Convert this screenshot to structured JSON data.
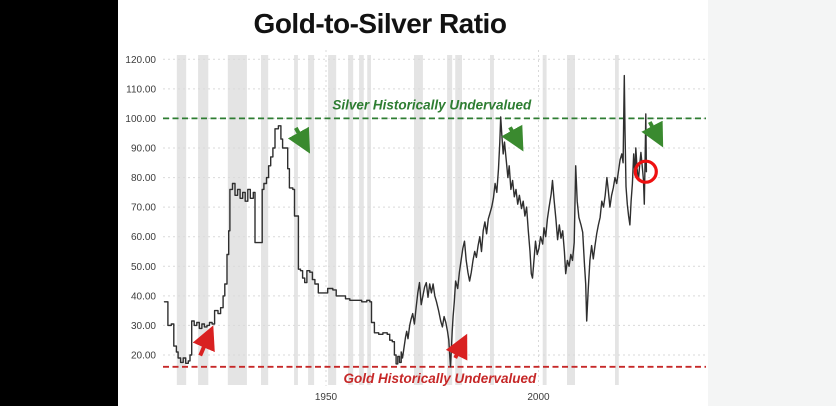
{
  "title": "Gold-to-Silver Ratio",
  "colors": {
    "background": "#ffffff",
    "letterbox": "#000000",
    "right_margin": "#f4f5f5",
    "series_line": "#2f2f2f",
    "recession_band": "#e4e4e4",
    "gridline": "#d9d9d9",
    "silver_green": "#2e7d32",
    "gold_red": "#c62828",
    "arrow_red": "#d92121",
    "arrow_green": "#3a8a2f",
    "circle_red": "#ee1111"
  },
  "chart_data": {
    "type": "line",
    "title": "Gold-to-Silver Ratio",
    "xlabel": "",
    "ylabel": "",
    "grid": true,
    "x_axis": {
      "ticks": [
        {
          "value": 1950,
          "label": "1950"
        },
        {
          "value": 2000,
          "label": "2000"
        }
      ],
      "data_range": [
        1912,
        2025.4
      ]
    },
    "y_axis": {
      "ticks": [
        {
          "value": 120,
          "label": "120.00"
        },
        {
          "value": 110,
          "label": "110.00"
        },
        {
          "value": 100,
          "label": "100.00"
        },
        {
          "value": 90,
          "label": "90.00"
        },
        {
          "value": 80,
          "label": "80.00"
        },
        {
          "value": 70,
          "label": "70.00"
        },
        {
          "value": 60,
          "label": "60.00"
        },
        {
          "value": 50,
          "label": "50.00"
        },
        {
          "value": 40,
          "label": "40.00"
        },
        {
          "value": 30,
          "label": "30.00"
        },
        {
          "value": 20,
          "label": "20.00"
        }
      ],
      "display_range": [
        20,
        120
      ]
    },
    "reference_lines": [
      {
        "name": "silver-historically-undervalued",
        "value": 100,
        "label": "Silver Historically Undervalued",
        "color": "#2e7d32",
        "label_center_year": 1974.9,
        "label_side": "above"
      },
      {
        "name": "gold-historically-undervalued",
        "value": 16,
        "label": "Gold Historically Undervalued",
        "color": "#c62828",
        "label_center_year": 1976.8,
        "label_side": "below"
      }
    ],
    "shaded_bands": [
      [
        1914.9,
        1917.1
      ],
      [
        1919.9,
        1922.3
      ],
      [
        1926.9,
        1931.4
      ],
      [
        1934.7,
        1936.4
      ],
      [
        1942.5,
        1943.4
      ],
      [
        1945.8,
        1947.2
      ],
      [
        1950.5,
        1952.4
      ],
      [
        1955.2,
        1956.4
      ],
      [
        1957.8,
        1958.9
      ],
      [
        1959.7,
        1960.6
      ],
      [
        1970.7,
        1972.8
      ],
      [
        1978.5,
        1979.7
      ],
      [
        1980.4,
        1982.0
      ],
      [
        1988.6,
        1989.5
      ],
      [
        2001.0,
        2001.9
      ],
      [
        2006.7,
        2008.6
      ],
      [
        2018.0,
        2018.9
      ]
    ],
    "step_rendering_before_year": 1968,
    "series": [
      {
        "name": "gold-to-silver-ratio",
        "color": "#2f2f2f",
        "points": [
          [
            1912,
            38
          ],
          [
            1912.8,
            30
          ],
          [
            1913.6,
            30.5
          ],
          [
            1914.2,
            23
          ],
          [
            1914.8,
            21
          ],
          [
            1915.2,
            19
          ],
          [
            1915.8,
            17.5
          ],
          [
            1916.4,
            19
          ],
          [
            1917,
            17.2
          ],
          [
            1917.6,
            18
          ],
          [
            1918,
            20
          ],
          [
            1918.4,
            31.5
          ],
          [
            1919,
            30
          ],
          [
            1919.6,
            31
          ],
          [
            1920.2,
            29
          ],
          [
            1920.8,
            30.5
          ],
          [
            1921.4,
            29.5
          ],
          [
            1922,
            30
          ],
          [
            1922.6,
            31
          ],
          [
            1923.2,
            30.5
          ],
          [
            1923.8,
            35
          ],
          [
            1924.6,
            34
          ],
          [
            1925.2,
            36
          ],
          [
            1925.8,
            40
          ],
          [
            1926.2,
            44
          ],
          [
            1926.7,
            54
          ],
          [
            1927.1,
            62
          ],
          [
            1927.4,
            76
          ],
          [
            1928,
            78
          ],
          [
            1928.6,
            74
          ],
          [
            1929.2,
            76
          ],
          [
            1929.8,
            73
          ],
          [
            1930.4,
            75
          ],
          [
            1931,
            72
          ],
          [
            1931.6,
            76
          ],
          [
            1932.2,
            73
          ],
          [
            1932.9,
            75
          ],
          [
            1933.3,
            58
          ],
          [
            1934.7,
            58
          ],
          [
            1935,
            76
          ],
          [
            1935.4,
            78
          ],
          [
            1936,
            80
          ],
          [
            1936.5,
            84
          ],
          [
            1937,
            87
          ],
          [
            1937.5,
            90
          ],
          [
            1938,
            96.5
          ],
          [
            1938.8,
            97.5
          ],
          [
            1939.4,
            93
          ],
          [
            1939.8,
            90
          ],
          [
            1940.6,
            90
          ],
          [
            1941,
            83
          ],
          [
            1941.4,
            76.5
          ],
          [
            1942.2,
            76
          ],
          [
            1942.6,
            67
          ],
          [
            1943.2,
            67
          ],
          [
            1943.5,
            49
          ],
          [
            1944,
            48.5
          ],
          [
            1944.5,
            46
          ],
          [
            1945,
            44.5
          ],
          [
            1945.5,
            48.5
          ],
          [
            1946.2,
            48
          ],
          [
            1946.8,
            45.5
          ],
          [
            1947.4,
            44
          ],
          [
            1948.2,
            41
          ],
          [
            1949.4,
            41
          ],
          [
            1950.4,
            42.5
          ],
          [
            1951.6,
            42
          ],
          [
            1952.4,
            40
          ],
          [
            1953.6,
            40
          ],
          [
            1954.6,
            39
          ],
          [
            1955.6,
            38.5
          ],
          [
            1957,
            38.5
          ],
          [
            1958.4,
            38
          ],
          [
            1959.6,
            38.5
          ],
          [
            1960.3,
            38
          ],
          [
            1960.7,
            31
          ],
          [
            1961.4,
            27.5
          ],
          [
            1962.4,
            27
          ],
          [
            1963.4,
            27.5
          ],
          [
            1964.4,
            27
          ],
          [
            1965,
            25
          ],
          [
            1965.6,
            24.5
          ],
          [
            1966.1,
            20
          ],
          [
            1966.5,
            17
          ],
          [
            1966.9,
            19.5
          ],
          [
            1967.3,
            17.5
          ],
          [
            1967.7,
            21
          ],
          [
            1968,
            19
          ],
          [
            1968.3,
            22
          ],
          [
            1968.7,
            26
          ],
          [
            1969,
            28
          ],
          [
            1969.3,
            25.5
          ],
          [
            1969.7,
            30
          ],
          [
            1970,
            32
          ],
          [
            1970.4,
            34
          ],
          [
            1970.8,
            30.5
          ],
          [
            1971.2,
            36
          ],
          [
            1971.6,
            41
          ],
          [
            1972,
            44.5
          ],
          [
            1972.4,
            37
          ],
          [
            1972.8,
            40
          ],
          [
            1973.2,
            43
          ],
          [
            1973.6,
            44.5
          ],
          [
            1974,
            39.5
          ],
          [
            1974.4,
            44
          ],
          [
            1974.8,
            41
          ],
          [
            1975.2,
            44
          ],
          [
            1975.6,
            40
          ],
          [
            1976,
            38
          ],
          [
            1976.5,
            35
          ],
          [
            1977,
            31.5
          ],
          [
            1977.4,
            29.5
          ],
          [
            1977.8,
            33
          ],
          [
            1978.2,
            31
          ],
          [
            1978.6,
            28
          ],
          [
            1978.9,
            25
          ],
          [
            1979.1,
            20
          ],
          [
            1979.3,
            16
          ],
          [
            1979.5,
            22
          ],
          [
            1979.7,
            28
          ],
          [
            1979.9,
            33
          ],
          [
            1980.2,
            38
          ],
          [
            1980.5,
            45
          ],
          [
            1981,
            42.5
          ],
          [
            1981.4,
            48
          ],
          [
            1981.8,
            52
          ],
          [
            1982.2,
            56
          ],
          [
            1982.6,
            58.5
          ],
          [
            1983,
            52
          ],
          [
            1983.4,
            48
          ],
          [
            1983.8,
            45
          ],
          [
            1984.2,
            48
          ],
          [
            1984.6,
            52
          ],
          [
            1985,
            55
          ],
          [
            1985.4,
            53
          ],
          [
            1985.8,
            57
          ],
          [
            1986.2,
            60
          ],
          [
            1986.6,
            55
          ],
          [
            1987,
            62
          ],
          [
            1987.4,
            65
          ],
          [
            1987.8,
            61
          ],
          [
            1988.2,
            66
          ],
          [
            1988.6,
            68
          ],
          [
            1989,
            70
          ],
          [
            1989.4,
            73
          ],
          [
            1989.8,
            78
          ],
          [
            1990.2,
            75
          ],
          [
            1990.6,
            83
          ],
          [
            1990.9,
            92
          ],
          [
            1991.1,
            100.5
          ],
          [
            1991.4,
            94
          ],
          [
            1991.7,
            88
          ],
          [
            1992,
            92
          ],
          [
            1992.4,
            86
          ],
          [
            1992.8,
            80
          ],
          [
            1993.1,
            84
          ],
          [
            1993.5,
            76
          ],
          [
            1993.9,
            79
          ],
          [
            1994.3,
            73.5
          ],
          [
            1994.7,
            76
          ],
          [
            1995.1,
            71
          ],
          [
            1995.5,
            74
          ],
          [
            1996,
            69.5
          ],
          [
            1996.4,
            72
          ],
          [
            1996.8,
            67
          ],
          [
            1997.2,
            70
          ],
          [
            1997.6,
            62
          ],
          [
            1998,
            55
          ],
          [
            1998.3,
            47.5
          ],
          [
            1998.6,
            46
          ],
          [
            1999,
            53
          ],
          [
            1999.3,
            58.5
          ],
          [
            1999.7,
            54
          ],
          [
            2000.1,
            56
          ],
          [
            2000.5,
            60
          ],
          [
            2001,
            57.5
          ],
          [
            2001.3,
            63
          ],
          [
            2001.7,
            60
          ],
          [
            2002.1,
            66
          ],
          [
            2002.5,
            70
          ],
          [
            2003,
            74.5
          ],
          [
            2003.3,
            79
          ],
          [
            2003.7,
            72
          ],
          [
            2004.1,
            66
          ],
          [
            2004.5,
            59
          ],
          [
            2004.9,
            64
          ],
          [
            2005.3,
            59.5
          ],
          [
            2005.7,
            62
          ],
          [
            2006.1,
            55
          ],
          [
            2006.4,
            47.5
          ],
          [
            2006.8,
            52
          ],
          [
            2007.2,
            50
          ],
          [
            2007.6,
            54
          ],
          [
            2008,
            52
          ],
          [
            2008.4,
            58
          ],
          [
            2008.75,
            84
          ],
          [
            2009.1,
            72
          ],
          [
            2009.5,
            66.5
          ],
          [
            2010,
            64
          ],
          [
            2010.4,
            61.5
          ],
          [
            2010.8,
            51
          ],
          [
            2011.1,
            44
          ],
          [
            2011.35,
            31.5
          ],
          [
            2011.7,
            42
          ],
          [
            2012.1,
            52
          ],
          [
            2012.5,
            57
          ],
          [
            2012.9,
            52.5
          ],
          [
            2013.3,
            57
          ],
          [
            2013.7,
            61
          ],
          [
            2014.1,
            64
          ],
          [
            2014.5,
            66.5
          ],
          [
            2014.9,
            72
          ],
          [
            2015.3,
            70
          ],
          [
            2015.7,
            74
          ],
          [
            2016.1,
            80
          ],
          [
            2016.4,
            76
          ],
          [
            2016.8,
            70
          ],
          [
            2017.2,
            74
          ],
          [
            2017.6,
            76.5
          ],
          [
            2018,
            80
          ],
          [
            2018.4,
            78
          ],
          [
            2018.8,
            82
          ],
          [
            2019.2,
            86
          ],
          [
            2019.6,
            88
          ],
          [
            2019.9,
            85
          ],
          [
            2020.2,
            114.5
          ],
          [
            2020.35,
            96
          ],
          [
            2020.6,
            77
          ],
          [
            2020.9,
            71
          ],
          [
            2021.2,
            67
          ],
          [
            2021.5,
            64
          ],
          [
            2021.8,
            72
          ],
          [
            2022.1,
            78
          ],
          [
            2022.4,
            88
          ],
          [
            2022.7,
            81
          ],
          [
            2022.9,
            90
          ],
          [
            2023.2,
            83
          ],
          [
            2023.5,
            79
          ],
          [
            2023.8,
            84
          ],
          [
            2024.1,
            88.5
          ],
          [
            2024.4,
            84
          ],
          [
            2024.7,
            79
          ],
          [
            2024.9,
            71
          ],
          [
            2025.1,
            88
          ],
          [
            2025.25,
            101.5
          ],
          [
            2025.4,
            82
          ]
        ]
      }
    ],
    "annotations": {
      "arrows": [
        {
          "name": "up-arrow-1920s-low",
          "direction": "up",
          "color": "#d92121",
          "from": [
            1920.4,
            19.8
          ],
          "to": [
            1923.1,
            28.8
          ]
        },
        {
          "name": "down-arrow-1940s-peak",
          "direction": "down",
          "color": "#3a8a2f",
          "from": [
            1942.9,
            96.8
          ],
          "to": [
            1945.8,
            89.3
          ]
        },
        {
          "name": "up-arrow-1980-low",
          "direction": "up",
          "color": "#d92121",
          "from": [
            1980.4,
            19.0
          ],
          "to": [
            1982.8,
            26.0
          ]
        },
        {
          "name": "down-arrow-1991-peak",
          "direction": "down",
          "color": "#3a8a2f",
          "from": [
            1993.3,
            97.0
          ],
          "to": [
            1996.0,
            90.0
          ]
        },
        {
          "name": "down-arrow-2025-peak",
          "direction": "down",
          "color": "#3a8a2f",
          "from": [
            2026.2,
            98.8
          ],
          "to": [
            2028.9,
            91.4
          ]
        }
      ],
      "highlight_circle": {
        "name": "current-value-circle",
        "at": [
          2025.25,
          82
        ],
        "color": "#ee1111"
      }
    }
  }
}
